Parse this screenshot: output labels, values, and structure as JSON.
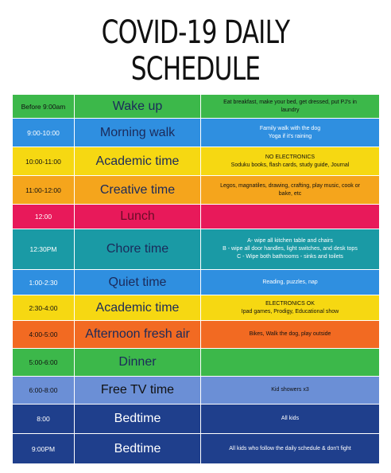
{
  "title": "COVID-19 DAILY SCHEDULE",
  "table": {
    "rows": [
      {
        "time": "Before 9:00am",
        "activity": "Wake up",
        "details": [
          "Eat breakfast, make your bed, get dressed, put PJ's in",
          "laundry"
        ]
      },
      {
        "time": "9:00-10:00",
        "activity": "Morning walk",
        "details": [
          "Family walk with the dog",
          "Yoga if it's raining"
        ]
      },
      {
        "time": "10:00-11:00",
        "activity": "Academic time",
        "details": [
          "NO ELECTRONICS",
          "Soduku books, flash cards, study guide, Journal"
        ]
      },
      {
        "time": "11:00-12:00",
        "activity": "Creative time",
        "details": [
          "Legos, magnatiles, drawing, crafting, play music, cook or",
          "bake, etc"
        ]
      },
      {
        "time": "12:00",
        "activity": "Lunch",
        "details": []
      },
      {
        "time": "12:30PM",
        "activity": "Chore time",
        "details": [
          "A- wipe all kitchen table and chairs",
          "B - wipe all door handles, light switches, and desk tops",
          "C - Wipe both bathrooms - sinks and toilets"
        ]
      },
      {
        "time": "1:00-2:30",
        "activity": "Quiet time",
        "details": [
          "Reading, puzzles, nap"
        ]
      },
      {
        "time": "2:30-4:00",
        "activity": "Academic time",
        "details": [
          "ELECTRONICS OK",
          "Ipad games, Prodigy, Educational show"
        ]
      },
      {
        "time": "4:00-5:00",
        "activity": "Afternoon fresh air",
        "details": [
          "Bikes, Walk the dog, play outside"
        ]
      },
      {
        "time": "5:00-6:00",
        "activity": "Dinner",
        "details": []
      },
      {
        "time": "6:00-8:00",
        "activity": "Free TV time",
        "details": [
          "Kid showers x3"
        ]
      },
      {
        "time": "8:00",
        "activity": "Bedtime",
        "details": [
          "All kids"
        ]
      },
      {
        "time": "9:00PM",
        "activity": "Bedtime",
        "details": [
          "All kids who follow the daily schedule & don't fight"
        ]
      }
    ]
  }
}
